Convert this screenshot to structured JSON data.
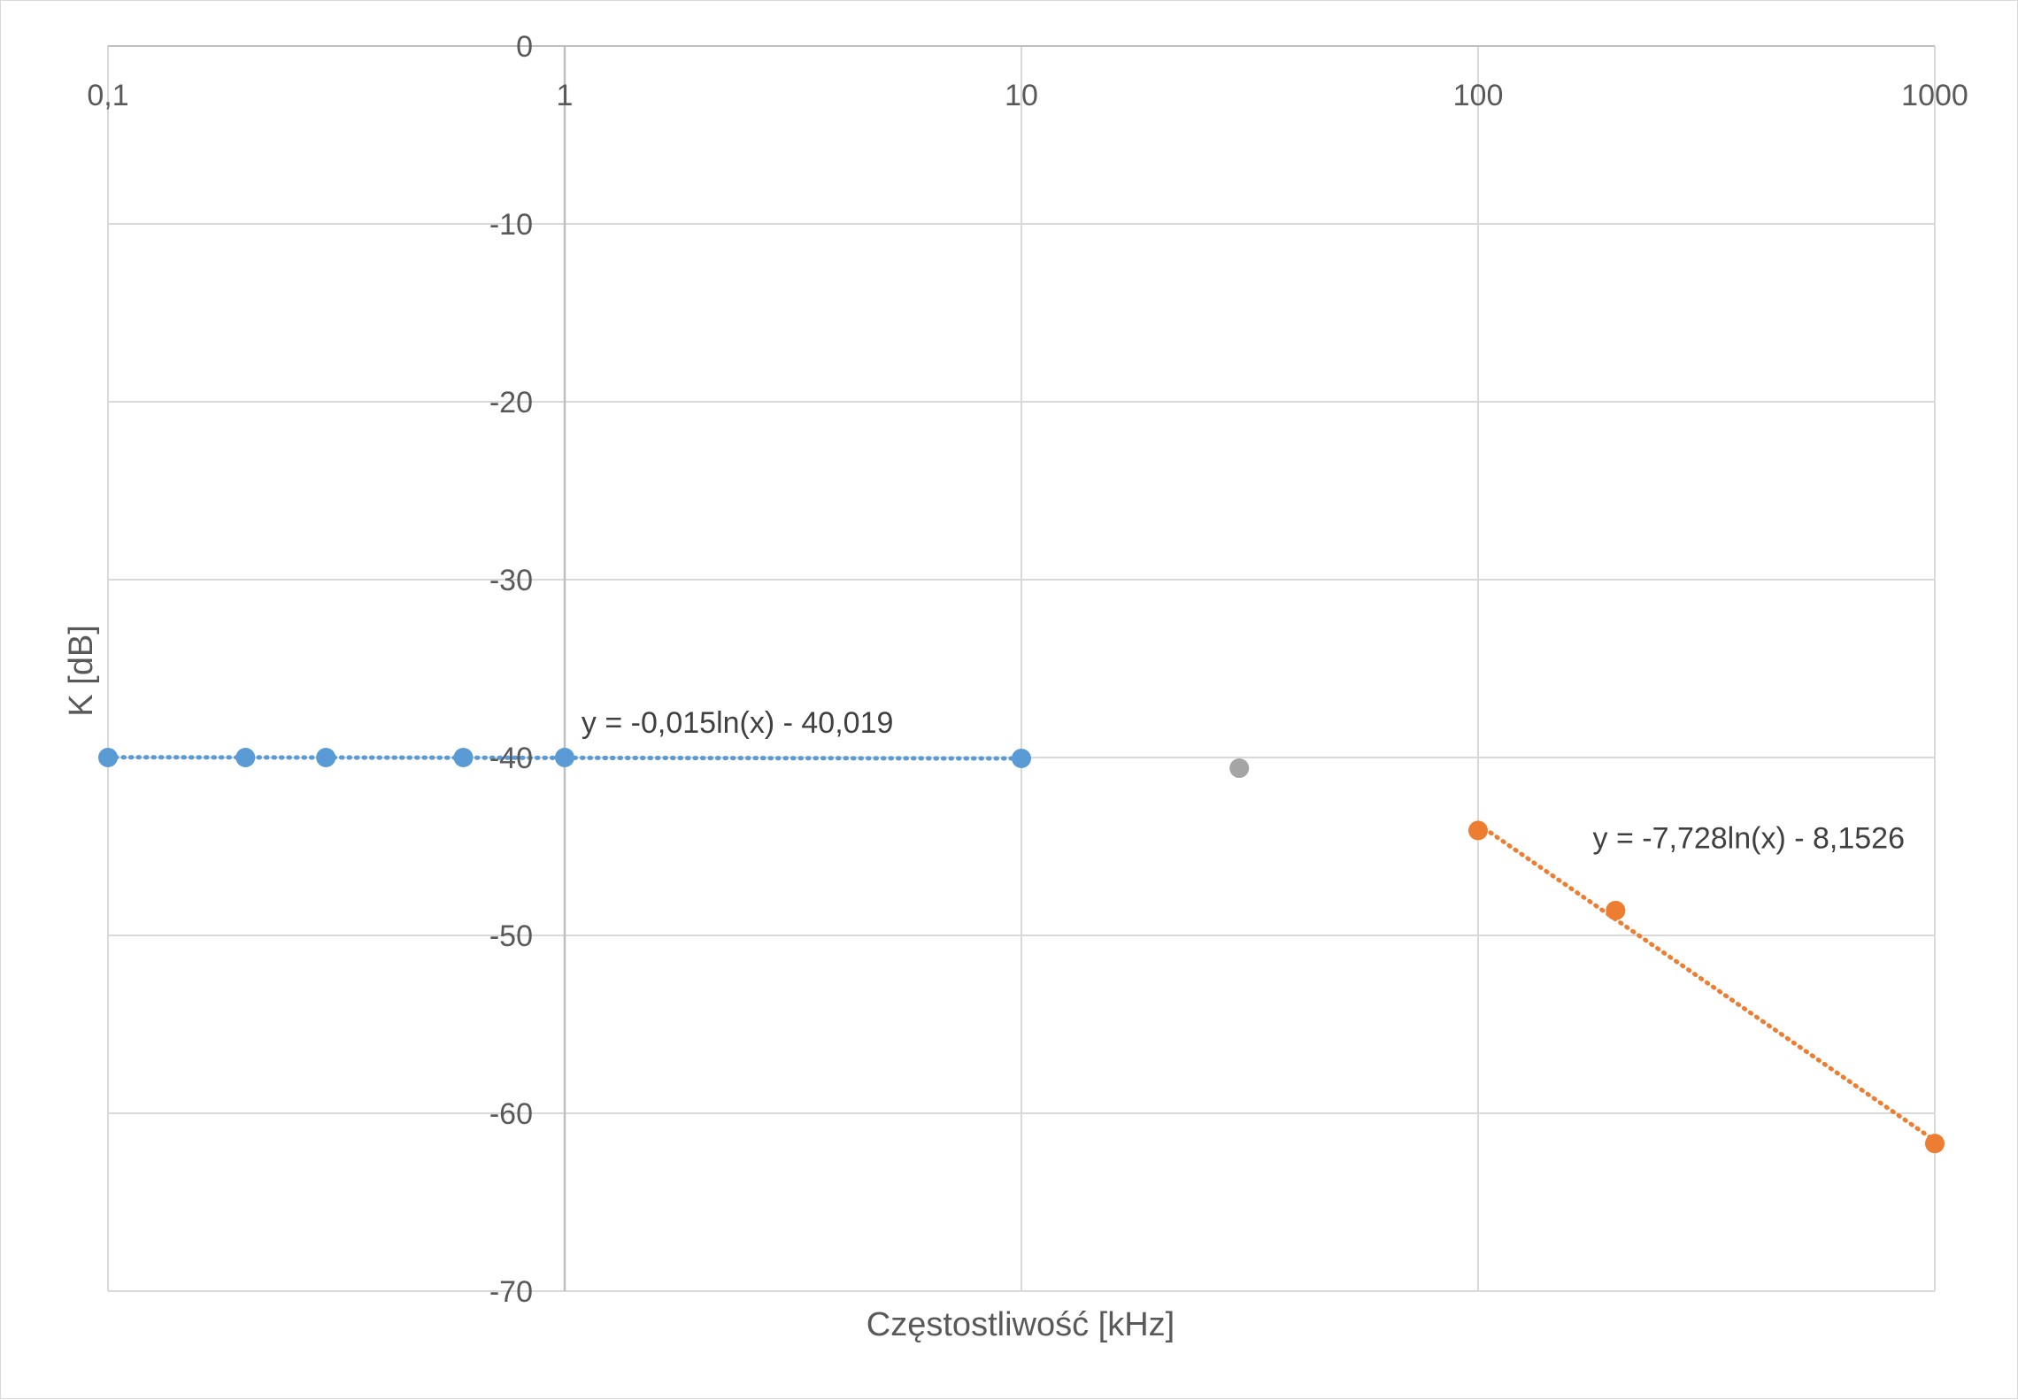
{
  "chart_data": {
    "type": "scatter",
    "xlabel": "Częstostliwość [kHz]",
    "ylabel": "K [dB]",
    "x_scale": "log",
    "xlim": [
      0.1,
      1000
    ],
    "ylim": [
      -70,
      0
    ],
    "x_ticks": [
      0.1,
      1,
      10,
      100,
      1000
    ],
    "x_tick_labels": [
      "0,1",
      "1",
      "10",
      "100",
      "1000"
    ],
    "y_ticks": [
      0,
      -10,
      -20,
      -30,
      -40,
      -50,
      -60,
      -70
    ],
    "y_tick_labels": [
      "0",
      "-10",
      "-20",
      "-30",
      "-40",
      "-50",
      "-60",
      "-70"
    ],
    "x_axis_position": "top",
    "y_axis_crosses_at_x": 1,
    "grid": true,
    "series": [
      {
        "color": "#5b9bd5",
        "points": [
          {
            "x": 0.1,
            "y": -40
          },
          {
            "x": 0.2,
            "y": -40
          },
          {
            "x": 0.3,
            "y": -40
          },
          {
            "x": 0.6,
            "y": -40
          },
          {
            "x": 1,
            "y": -40
          },
          {
            "x": 10,
            "y": -40.05
          }
        ],
        "trendline": {
          "type": "logarithmic",
          "a": -0.015,
          "b": -40.019,
          "x_range": [
            0.1,
            10
          ],
          "equation": "y = -0,015ln(x) - 40,019"
        }
      },
      {
        "color": "#a5a5a5",
        "points": [
          {
            "x": 30,
            "y": -40.6
          }
        ]
      },
      {
        "color": "#ed7d31",
        "points": [
          {
            "x": 100,
            "y": -44.1
          },
          {
            "x": 200,
            "y": -48.6
          },
          {
            "x": 1000,
            "y": -61.7
          }
        ],
        "trendline": {
          "type": "logarithmic",
          "a": -7.728,
          "b": -8.1526,
          "x_range": [
            100,
            1000
          ],
          "equation": "y = -7,728ln(x) - 8,1526"
        }
      }
    ]
  }
}
